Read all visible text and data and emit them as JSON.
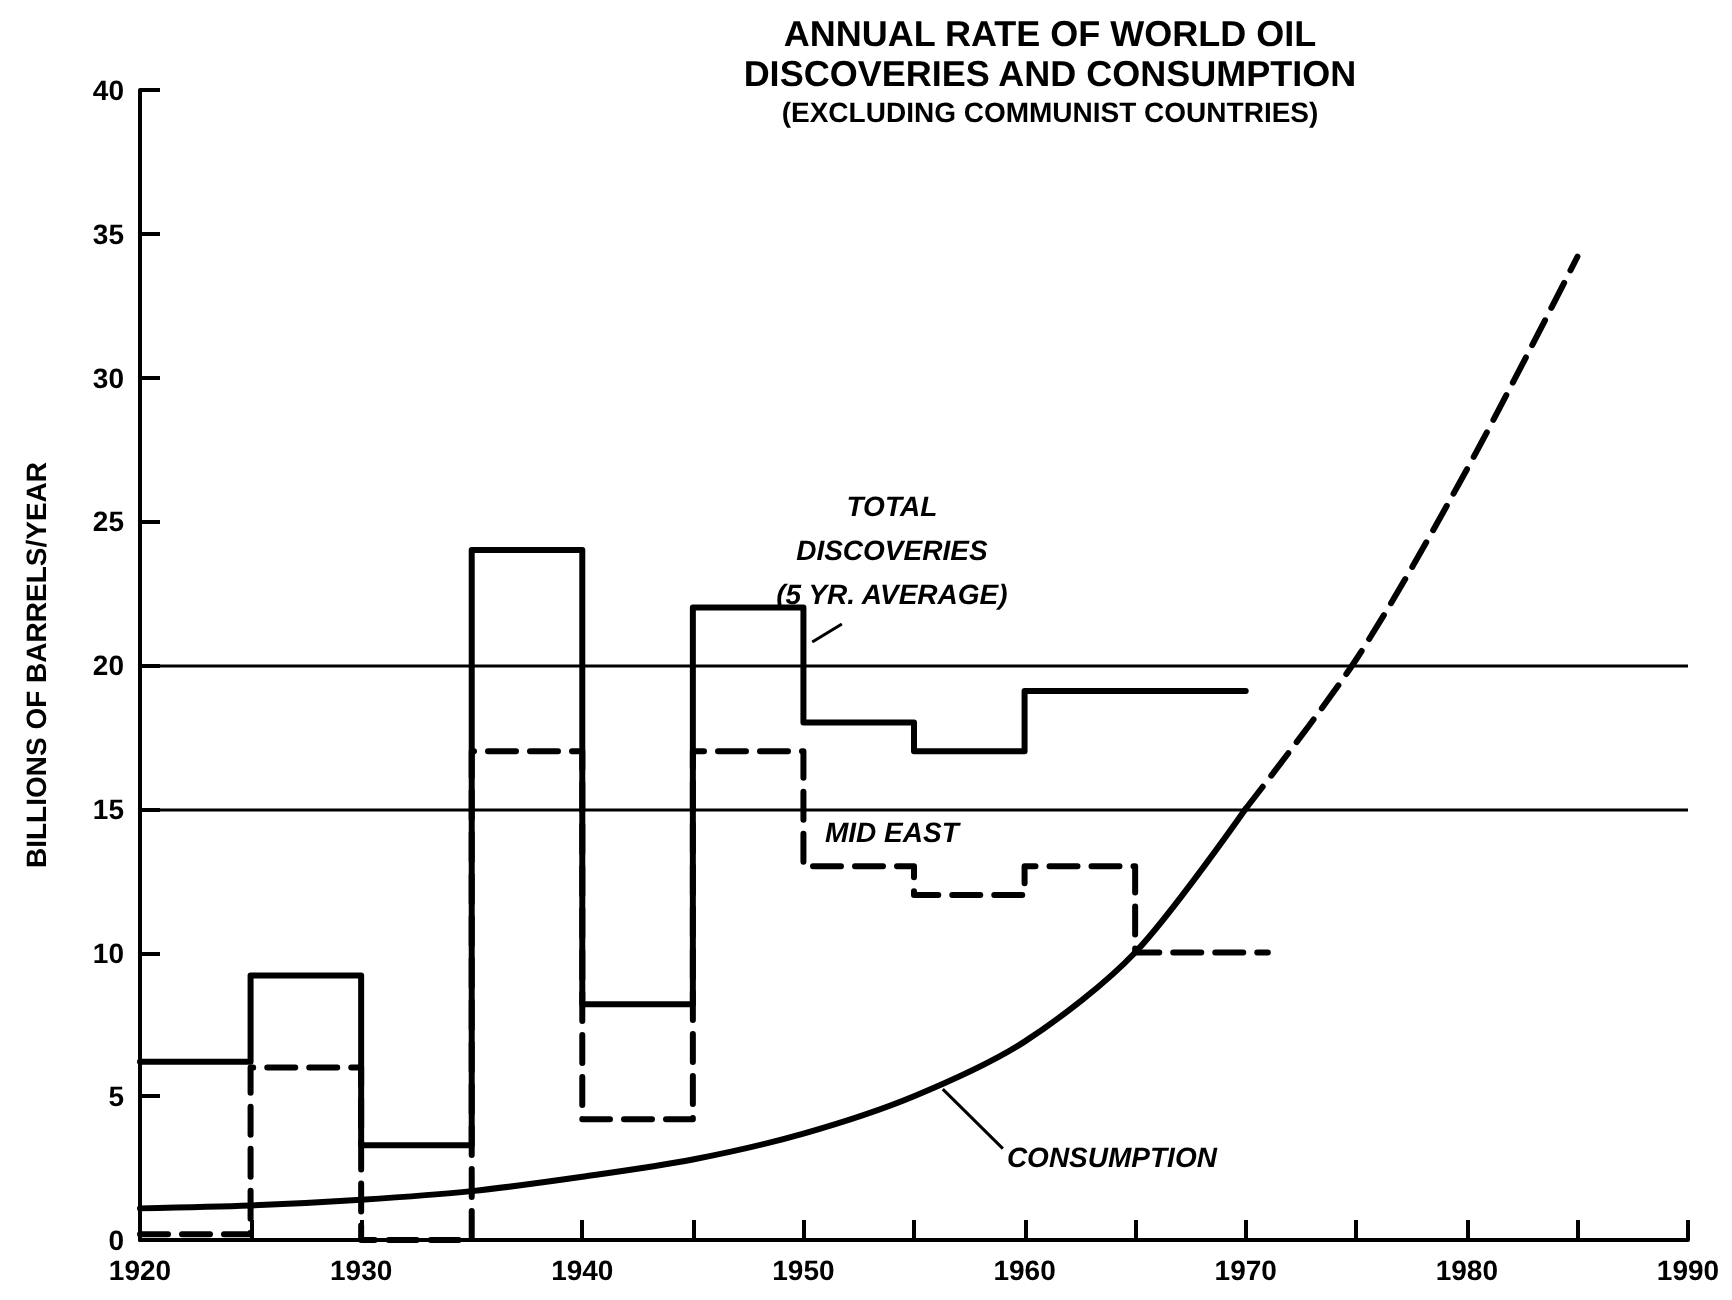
{
  "chart_data": {
    "type": "step",
    "title": "ANNUAL RATE OF WORLD OIL\nDISCOVERIES AND CONSUMPTION",
    "subtitle": "(EXCLUDING COMMUNIST COUNTRIES)",
    "ylabel": "BILLIONS OF BARRELS/YEAR",
    "xlim": [
      1920,
      1990
    ],
    "xticks": [
      1920,
      {
        "value": 1925,
        "label": null
      },
      1930,
      {
        "value": 1935,
        "label": null
      },
      1940,
      {
        "value": 1945,
        "label": null
      },
      1950,
      {
        "value": 1955,
        "label": null
      },
      1960,
      {
        "value": 1965,
        "label": null
      },
      1970,
      {
        "value": 1975,
        "label": null
      },
      1980,
      {
        "value": 1985,
        "label": null
      },
      1990
    ],
    "ylim": [
      0,
      40
    ],
    "yticks": [
      0,
      5,
      10,
      15,
      20,
      25,
      30,
      35,
      40
    ],
    "grid": false,
    "legend": false,
    "marker": "none",
    "ref_lines": [
      {
        "axis": "y",
        "value": 20,
        "label": null,
        "color": "#000000",
        "line_style": "solid"
      },
      {
        "axis": "y",
        "value": 15,
        "label": null,
        "color": "#000000",
        "line_style": "solid"
      }
    ],
    "series": [
      {
        "name": "TOTAL\nDISCOVERIES\n(5 YR. AVERAGE)",
        "color": "#000000",
        "line_style": "solid",
        "x": [
          1920,
          1925,
          1930,
          1935,
          1940,
          1945,
          1950,
          1955,
          1960,
          1970
        ],
        "values": [
          6.2,
          9.2,
          3.3,
          24,
          8.2,
          22,
          18,
          17,
          19.1,
          19.1
        ]
      },
      {
        "name": "MID EAST",
        "color": "#000000",
        "line_style": "dashed",
        "x": [
          1920,
          1925,
          1930,
          1935,
          1940,
          1945,
          1950,
          1955,
          1960,
          1965,
          1971
        ],
        "values": [
          0.2,
          6,
          0,
          17,
          4.2,
          17,
          13,
          12,
          13,
          10,
          10
        ]
      },
      {
        "name": "CONSUMPTION",
        "type": "line",
        "color": "#000000",
        "line_style": "solid",
        "x": [
          1920,
          1925,
          1930,
          1935,
          1940,
          1945,
          1950,
          1955,
          1960,
          1965,
          1970
        ],
        "values": [
          1.1,
          1.2,
          1.4,
          1.7,
          2.2,
          2.8,
          3.7,
          5.0,
          6.9,
          10.0,
          15.0
        ]
      },
      {
        "type": "line",
        "color": "#000000",
        "line_style": "dashed",
        "x": [
          1970,
          1975,
          1980,
          1985
        ],
        "values": [
          15.0,
          20.2,
          26.8,
          34.2
        ]
      }
    ]
  }
}
